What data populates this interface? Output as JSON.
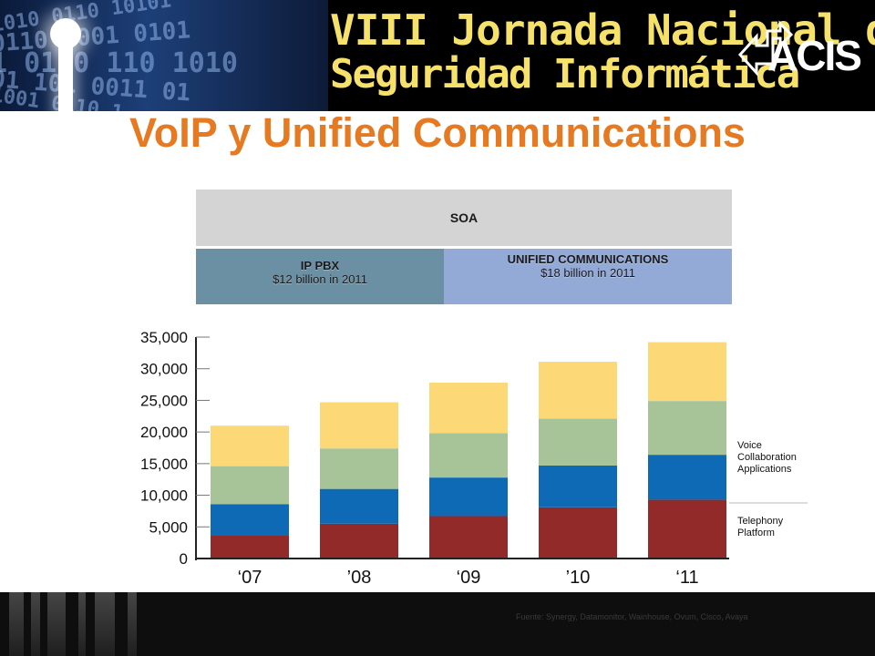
{
  "header": {
    "event_line1": "VIII Jornada Nacional de",
    "event_line2": "Seguridad Informática",
    "logo_text": "ACIS",
    "binary_rows": [
      "1010 0110 10101",
      "0110 1001 0101",
      "1 0100 110 1010",
      "01 101 0011 01",
      "1001 0110 1"
    ]
  },
  "title": "VoIP y Unified Communications",
  "market_boxes": {
    "soa": "SOA",
    "ip_pbx": {
      "label": "IP PBX",
      "value": "$12 billion in 2011"
    },
    "unified": {
      "label": "UNIFIED COMMUNICATIONS",
      "value": "$18 billion in 2011"
    }
  },
  "chart_data": {
    "type": "bar",
    "stacked": true,
    "categories": [
      "‘07",
      "’08",
      "‘09",
      "’10",
      "‘11"
    ],
    "series": [
      {
        "color": "#922a2a",
        "values": [
          3600,
          5500,
          6700,
          8100,
          9300
        ]
      },
      {
        "color": "#0e6ab4",
        "values": [
          5000,
          5500,
          6100,
          6600,
          7100
        ]
      },
      {
        "color": "#a7c498",
        "values": [
          6000,
          6400,
          7000,
          7400,
          8500
        ]
      },
      {
        "color": "#fcd877",
        "values": [
          6400,
          7300,
          8000,
          9000,
          9300
        ]
      }
    ],
    "ylim": [
      0,
      35000
    ],
    "yticks": [
      "0",
      "5,000",
      "10,000",
      "15,000",
      "20,000",
      "25,000",
      "30,000",
      "35,000"
    ],
    "side_labels": [
      {
        "lines": [
          "Voice",
          "Collaboration",
          "Applications"
        ]
      },
      {
        "lines": [
          "Telephony",
          "Platform"
        ]
      }
    ],
    "grid": false,
    "legend": "right"
  },
  "footer": {
    "source": "Fuente: Synergy, Datamonitor, Wainhouse, Ovum, Cisco, Avaya"
  }
}
